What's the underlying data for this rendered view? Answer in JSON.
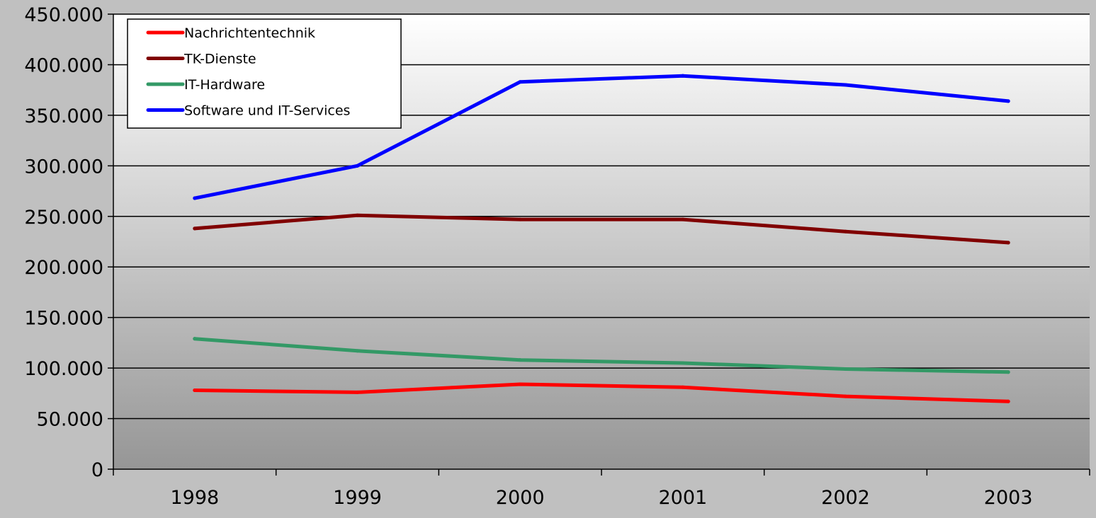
{
  "chart_data": {
    "type": "line",
    "categories": [
      "1998",
      "1999",
      "2000",
      "2001",
      "2002",
      "2003"
    ],
    "series": [
      {
        "name": "Nachrichtentechnik",
        "color": "#ff0000",
        "values": [
          78000,
          76000,
          84000,
          81000,
          72000,
          67000
        ]
      },
      {
        "name": "TK-Dienste",
        "color": "#800000",
        "values": [
          238000,
          251000,
          247000,
          247000,
          235000,
          224000
        ]
      },
      {
        "name": "IT-Hardware",
        "color": "#339966",
        "values": [
          129000,
          117000,
          108000,
          105000,
          99000,
          96000
        ]
      },
      {
        "name": "Software und IT-Services",
        "color": "#0000ff",
        "values": [
          268000,
          300000,
          383000,
          389000,
          380000,
          364000
        ]
      }
    ],
    "y_ticks": [
      "0",
      "50.000",
      "100.000",
      "150.000",
      "200.000",
      "250.000",
      "300.000",
      "350.000",
      "400.000",
      "450.000"
    ],
    "ylim": [
      0,
      450000
    ],
    "grid": true,
    "legend_position": "top-left"
  }
}
